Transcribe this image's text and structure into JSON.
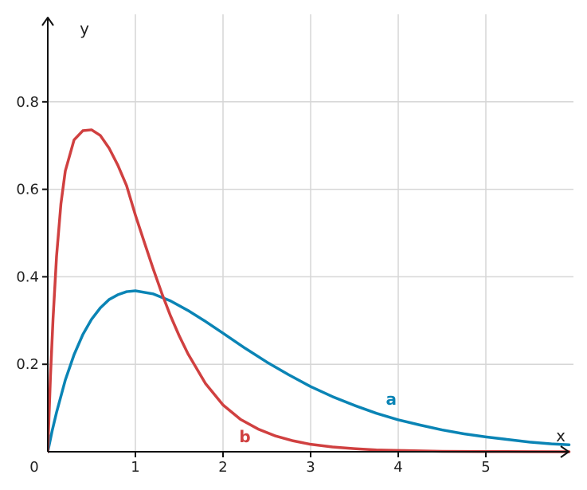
{
  "chart_data": {
    "type": "line",
    "title": "",
    "xlabel": "x",
    "ylabel": "y",
    "xlim": [
      0,
      5.95
    ],
    "ylim": [
      0,
      0.98
    ],
    "origin_label": "0",
    "x_ticks": [
      {
        "value": 1,
        "label": "1"
      },
      {
        "value": 2,
        "label": "2"
      },
      {
        "value": 3,
        "label": "3"
      },
      {
        "value": 4,
        "label": "4"
      },
      {
        "value": 5,
        "label": "5"
      }
    ],
    "y_ticks": [
      {
        "value": 0.2,
        "label": "0.2"
      },
      {
        "value": 0.4,
        "label": "0.4"
      },
      {
        "value": 0.6,
        "label": "0.6"
      },
      {
        "value": 0.8,
        "label": "0.8"
      }
    ],
    "grid": true,
    "series": [
      {
        "name": "a",
        "color": "#0a84b5",
        "label_at": [
          3.92,
          0.12
        ],
        "points": [
          [
            0,
            0
          ],
          [
            0.05,
            0.048
          ],
          [
            0.1,
            0.09
          ],
          [
            0.2,
            0.164
          ],
          [
            0.3,
            0.222
          ],
          [
            0.4,
            0.268
          ],
          [
            0.5,
            0.303
          ],
          [
            0.6,
            0.329
          ],
          [
            0.7,
            0.348
          ],
          [
            0.8,
            0.359
          ],
          [
            0.9,
            0.366
          ],
          [
            1.0,
            0.368
          ],
          [
            1.2,
            0.361
          ],
          [
            1.4,
            0.345
          ],
          [
            1.6,
            0.323
          ],
          [
            1.8,
            0.298
          ],
          [
            2.0,
            0.271
          ],
          [
            2.25,
            0.237
          ],
          [
            2.5,
            0.205
          ],
          [
            2.75,
            0.176
          ],
          [
            3.0,
            0.149
          ],
          [
            3.25,
            0.126
          ],
          [
            3.5,
            0.106
          ],
          [
            3.75,
            0.088
          ],
          [
            4.0,
            0.073
          ],
          [
            4.25,
            0.061
          ],
          [
            4.5,
            0.05
          ],
          [
            4.75,
            0.041
          ],
          [
            5.0,
            0.034
          ],
          [
            5.25,
            0.028
          ],
          [
            5.5,
            0.022
          ],
          [
            5.75,
            0.018
          ],
          [
            5.95,
            0.016
          ]
        ]
      },
      {
        "name": "b",
        "color": "#d04040",
        "label_at": [
          2.25,
          0.035
        ],
        "points": [
          [
            0,
            0
          ],
          [
            0.03,
            0.17
          ],
          [
            0.06,
            0.304
          ],
          [
            0.1,
            0.447
          ],
          [
            0.15,
            0.567
          ],
          [
            0.2,
            0.642
          ],
          [
            0.3,
            0.713
          ],
          [
            0.4,
            0.734
          ],
          [
            0.5,
            0.736
          ],
          [
            0.6,
            0.723
          ],
          [
            0.7,
            0.694
          ],
          [
            0.8,
            0.655
          ],
          [
            0.9,
            0.608
          ],
          [
            1.0,
            0.541
          ],
          [
            1.1,
            0.48
          ],
          [
            1.2,
            0.42
          ],
          [
            1.3,
            0.363
          ],
          [
            1.4,
            0.311
          ],
          [
            1.5,
            0.265
          ],
          [
            1.6,
            0.224
          ],
          [
            1.8,
            0.156
          ],
          [
            2.0,
            0.107
          ],
          [
            2.2,
            0.074
          ],
          [
            2.4,
            0.052
          ],
          [
            2.6,
            0.036
          ],
          [
            2.8,
            0.025
          ],
          [
            3.0,
            0.017
          ],
          [
            3.25,
            0.011
          ],
          [
            3.5,
            0.007
          ],
          [
            3.75,
            0.004
          ],
          [
            4.0,
            0.003
          ],
          [
            4.5,
            0.001
          ],
          [
            5.0,
            0.0005
          ],
          [
            5.5,
            0.0002
          ],
          [
            5.95,
            0.0001
          ]
        ]
      }
    ]
  }
}
